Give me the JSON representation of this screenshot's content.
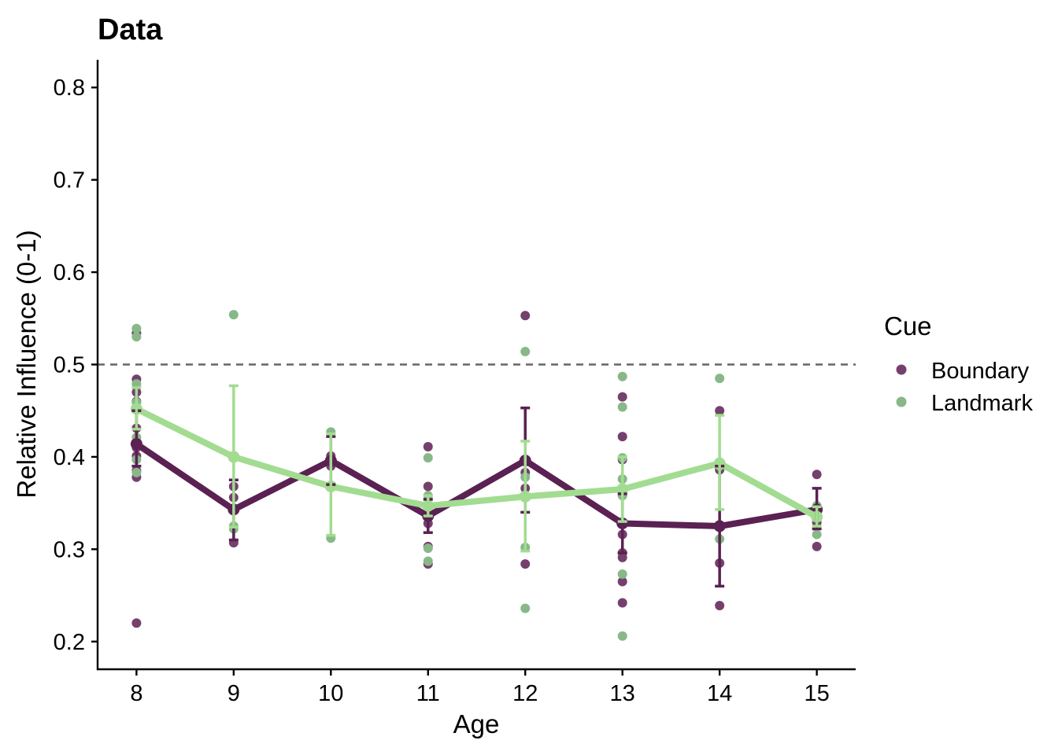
{
  "chart_data": {
    "type": "line",
    "title": "Data",
    "xlabel": "Age",
    "ylabel": "Relative Influence (0-1)",
    "xlim": [
      7.6,
      15.4
    ],
    "ylim": [
      0.17,
      0.83
    ],
    "x_ticks": [
      "8",
      "9",
      "10",
      "11",
      "12",
      "13",
      "14",
      "15"
    ],
    "y_ticks": [
      "0.2",
      "0.3",
      "0.4",
      "0.5",
      "0.6",
      "0.7",
      "0.8"
    ],
    "reference_line": {
      "y": 0.5,
      "style": "dashed",
      "color": "#666666"
    },
    "legend": {
      "title": "Cue",
      "placement": "right"
    },
    "series": [
      {
        "name": "Boundary",
        "color": "#5a2152",
        "point_color": "#76406d",
        "x": [
          8,
          9,
          10,
          11,
          12,
          13,
          14,
          15
        ],
        "mean": [
          0.414,
          0.343,
          0.396,
          0.336,
          0.396,
          0.328,
          0.325,
          0.343
        ],
        "error_low": [
          0.39,
          0.31,
          0.37,
          0.318,
          0.34,
          0.296,
          0.26,
          0.322
        ],
        "error_high": [
          0.45,
          0.375,
          0.422,
          0.354,
          0.453,
          0.36,
          0.39,
          0.366
        ],
        "points": [
          [
            8,
            0.534
          ],
          [
            8,
            0.484
          ],
          [
            8,
            0.47
          ],
          [
            8,
            0.46
          ],
          [
            8,
            0.431
          ],
          [
            8,
            0.414
          ],
          [
            8,
            0.41
          ],
          [
            8,
            0.401
          ],
          [
            8,
            0.385
          ],
          [
            8,
            0.378
          ],
          [
            8,
            0.22
          ],
          [
            9,
            0.368
          ],
          [
            9,
            0.356
          ],
          [
            9,
            0.307
          ],
          [
            10,
            0.401
          ],
          [
            10,
            0.39
          ],
          [
            11,
            0.411
          ],
          [
            11,
            0.368
          ],
          [
            11,
            0.328
          ],
          [
            11,
            0.303
          ],
          [
            11,
            0.284
          ],
          [
            12,
            0.553
          ],
          [
            12,
            0.383
          ],
          [
            12,
            0.366
          ],
          [
            12,
            0.284
          ],
          [
            13,
            0.465
          ],
          [
            13,
            0.422
          ],
          [
            13,
            0.397
          ],
          [
            13,
            0.316
          ],
          [
            13,
            0.296
          ],
          [
            13,
            0.291
          ],
          [
            13,
            0.265
          ],
          [
            13,
            0.242
          ],
          [
            14,
            0.45
          ],
          [
            14,
            0.386
          ],
          [
            14,
            0.285
          ],
          [
            14,
            0.239
          ],
          [
            15,
            0.381
          ],
          [
            15,
            0.343
          ],
          [
            15,
            0.329
          ],
          [
            15,
            0.303
          ]
        ]
      },
      {
        "name": "Landmark",
        "color": "#a2dc91",
        "point_color": "#88b888",
        "x": [
          8,
          9,
          10,
          11,
          12,
          13,
          14,
          15
        ],
        "mean": [
          0.452,
          0.4,
          0.368,
          0.347,
          0.357,
          0.365,
          0.393,
          0.335
        ],
        "error_low": [
          0.43,
          0.324,
          0.315,
          0.336,
          0.298,
          0.33,
          0.343,
          0.325
        ],
        "error_high": [
          0.475,
          0.477,
          0.425,
          0.358,
          0.417,
          0.4,
          0.445,
          0.346
        ],
        "points": [
          [
            8,
            0.539
          ],
          [
            8,
            0.53
          ],
          [
            8,
            0.479
          ],
          [
            8,
            0.459
          ],
          [
            8,
            0.421
          ],
          [
            8,
            0.397
          ],
          [
            8,
            0.383
          ],
          [
            9,
            0.554
          ],
          [
            9,
            0.325
          ],
          [
            9,
            0.322
          ],
          [
            10,
            0.427
          ],
          [
            10,
            0.312
          ],
          [
            11,
            0.399
          ],
          [
            11,
            0.358
          ],
          [
            11,
            0.339
          ],
          [
            11,
            0.301
          ],
          [
            11,
            0.287
          ],
          [
            12,
            0.514
          ],
          [
            12,
            0.378
          ],
          [
            12,
            0.302
          ],
          [
            12,
            0.236
          ],
          [
            13,
            0.487
          ],
          [
            13,
            0.454
          ],
          [
            13,
            0.399
          ],
          [
            13,
            0.376
          ],
          [
            13,
            0.358
          ],
          [
            13,
            0.273
          ],
          [
            13,
            0.206
          ],
          [
            14,
            0.485
          ],
          [
            14,
            0.39
          ],
          [
            14,
            0.311
          ],
          [
            15,
            0.347
          ],
          [
            15,
            0.316
          ]
        ]
      }
    ]
  }
}
